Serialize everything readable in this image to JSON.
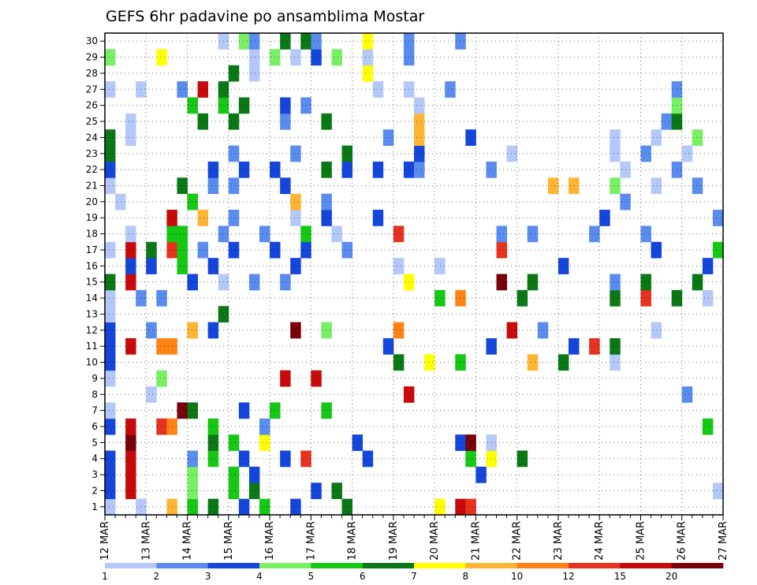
{
  "chart_data": {
    "type": "heatmap",
    "title": "GEFS 6hr padavine po ansamblima Mostar",
    "xlabel": "",
    "ylabel": "",
    "x_tick_labels": [
      "12 MAR",
      "13 MAR",
      "14 MAR",
      "15 MAR",
      "16 MAR",
      "17 MAR",
      "18 MAR",
      "19 MAR",
      "20 MAR",
      "21 MAR",
      "22 MAR",
      "23 MAR",
      "24 MAR",
      "25 MAR",
      "26 MAR",
      "27 MAR"
    ],
    "time_steps": 60,
    "ensemble_members": [
      1,
      2,
      3,
      4,
      5,
      6,
      7,
      8,
      9,
      10,
      11,
      12,
      13,
      14,
      15,
      16,
      17,
      18,
      19,
      20,
      21,
      22,
      23,
      24,
      25,
      26,
      27,
      28,
      29,
      30
    ],
    "color_scale": {
      "levels": [
        1,
        2,
        3,
        4,
        5,
        6,
        7,
        8,
        10,
        12,
        15,
        20
      ],
      "labels": [
        "1",
        "2",
        "3",
        "4",
        "5",
        "6",
        "7",
        "8",
        "10",
        "12",
        "15",
        "20"
      ],
      "colors": [
        "#b4c8fa",
        "#5a8cf0",
        "#1446dc",
        "#78f064",
        "#14c814",
        "#0a7814",
        "#ffff00",
        "#ffb432",
        "#ff8214",
        "#e6321e",
        "#c80a0a",
        "#78000a"
      ]
    },
    "rows": {
      "30": "...........0.31..5.51....6...1....1..........................",
      "29": "3....6........0.3.0.2.3..0...1...............................",
      "28": "............5.0..........6...................................",
      "27": "0..0...1.a.5..............0..0...1.....................1.....",
      "26": "........4..4.5...2.1..........0........................3.....",
      "25": "..0......5..5....1...5........7.......................15.....",
      "24": "5.0........................1..7....2.............0...0...3...",
      "23": "5...........1.....1....5......2........0.........0..1...0....",
      "22": "2.........2..2..2....5.2..2..21......1............0....1.....",
      "21": "0......5..1.1....2.........................7.7...3...0...1....",
      "20": ".0......4.........7..1............................1...........",
      "19": "......a..7..1.....0..2....2.....................2..........10.",
      "18": "..0...44...1...1...4..0.....9.........1..1.....1....1........",
      "17": "0.a.5.94.1..2...2..2...1..............9..............2.....4..",
      "16": "..2.2..4..2.......2.........0...0...........2.............2...",
      "15": "5.a.....2..0..1..1...........6........b..5.......1..5....5....",
      "14": "0..1.1..........................4.8.....5........5..9..5..0...",
      "13": "0..........5.................................................",
      "12": "2...1...7.2.......b..3......8..........a..1..........0........",
      "11": "2.a..88....................2.........2.......2.9.5...........",
      "10": "2...........................5..6..4......7..5....0............",
      "9": "0....3...........a..a.........................................",
      "8": "....0........................a..........................1.....",
      "7": "0......b5....2..4....4.......................................",
      "6": "2.a..98...4....1..........................................4...",
      "5": "..b.......5.4..6........2.........2b.0.......................9",
      "4": "2.a.....1.4..2...2.9.....2.........4.6..5.....................",
      "3": "2.a.....3...4.2.....................2.........................",
      "2": "2.a.....3...4.5.....2.5....................................0..",
      "1": "0..0..7.4.5..2.4..2....5........6.a9.........................0"
    }
  }
}
